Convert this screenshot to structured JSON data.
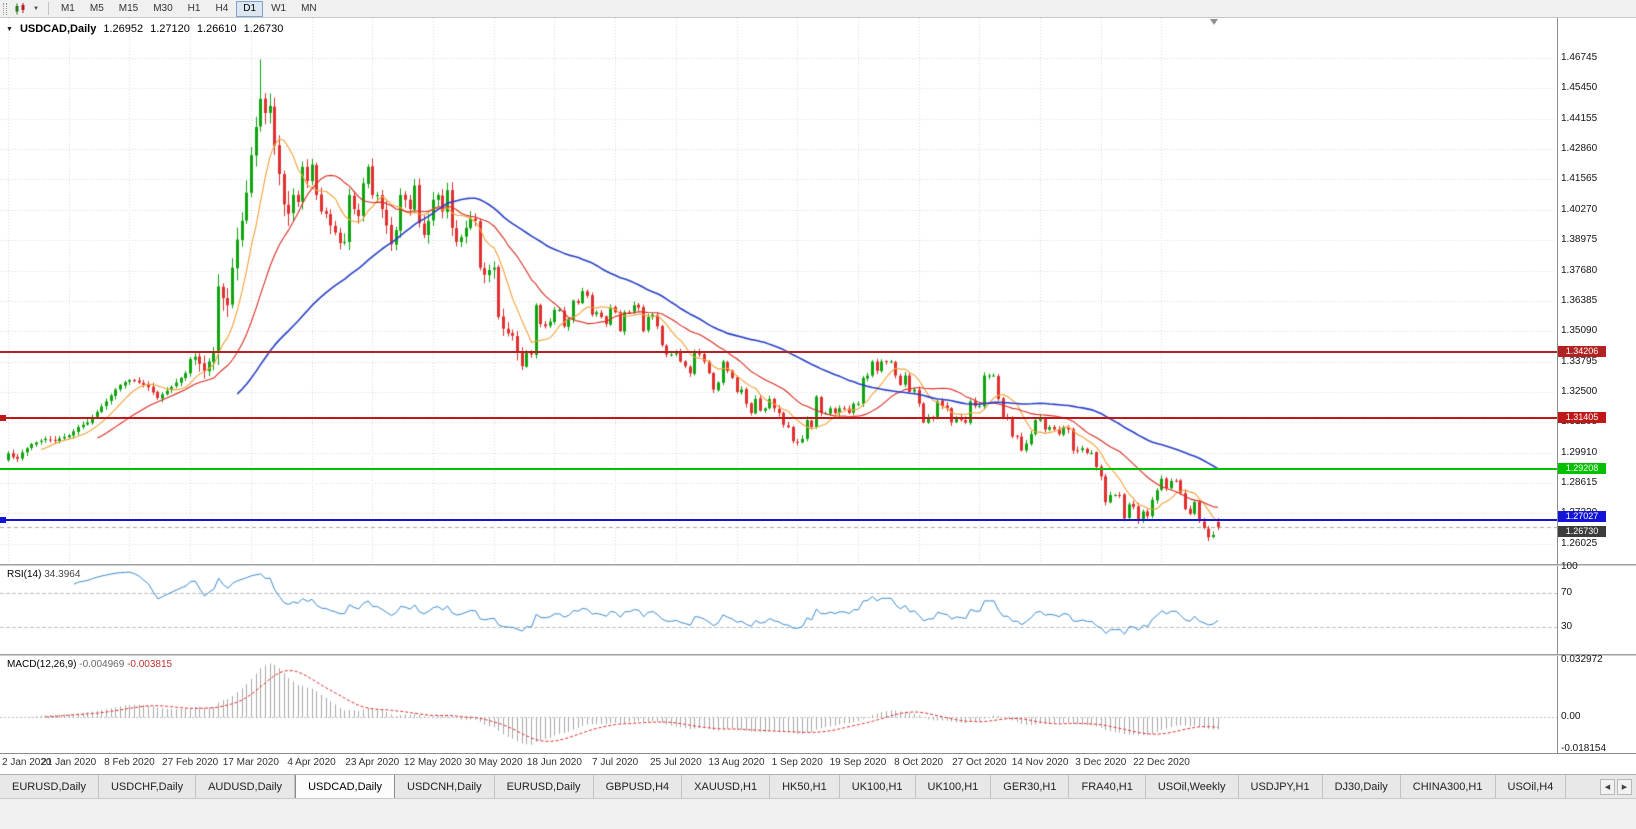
{
  "toolbar": {
    "timeframes": [
      "M1",
      "M5",
      "M15",
      "M30",
      "H1",
      "H4",
      "D1",
      "W1",
      "MN"
    ],
    "active": "D1"
  },
  "chart": {
    "symbol": "USDCAD,Daily",
    "open": "1.26952",
    "high": "1.27120",
    "low": "1.26610",
    "close": "1.26730",
    "collapse_icon": "▼"
  },
  "chart_data": {
    "type": "candlestick",
    "symbol": "USDCAD",
    "timeframe": "Daily",
    "x_labels": [
      "2 Jan 2020",
      "21 Jan 2020",
      "8 Feb 2020",
      "27 Feb 2020",
      "17 Mar 2020",
      "4 Apr 2020",
      "23 Apr 2020",
      "12 May 2020",
      "30 May 2020",
      "18 Jun 2020",
      "7 Jul 2020",
      "25 Jul 2020",
      "13 Aug 2020",
      "1 Sep 2020",
      "19 Sep 2020",
      "8 Oct 2020",
      "27 Oct 2020",
      "14 Nov 2020",
      "3 Dec 2020",
      "22 Dec 2020"
    ],
    "bars_per_label": 13,
    "y_axis": {
      "top": 1.46745,
      "step": 0.01295,
      "ticks": 17
    },
    "y_tick_labels": [
      "1.46745",
      "1.45450",
      "1.44155",
      "1.42860",
      "1.41565",
      "1.40270",
      "1.38975",
      "1.37680",
      "1.36385",
      "1.35090",
      "1.33795",
      "1.32500",
      "1.31205",
      "1.29910",
      "1.28615",
      "1.27320",
      "1.26025"
    ],
    "first_open": 1.296,
    "closes": [
      1.2988,
      1.2972,
      1.2965,
      1.2992,
      1.301,
      1.3028,
      1.3035,
      1.3042,
      1.305,
      1.3046,
      1.3042,
      1.3052,
      1.3058,
      1.3065,
      1.3082,
      1.31,
      1.311,
      1.312,
      1.3142,
      1.3165,
      1.3188,
      1.321,
      1.3235,
      1.326,
      1.328,
      1.3292,
      1.33,
      1.3296,
      1.329,
      1.328,
      1.327,
      1.3248,
      1.3225,
      1.324,
      1.3255,
      1.3272,
      1.329,
      1.331,
      1.333,
      1.339,
      1.34,
      1.337,
      1.334,
      1.338,
      1.342,
      1.37,
      1.365,
      1.362,
      1.378,
      1.39,
      1.398,
      1.41,
      1.426,
      1.438,
      1.45,
      1.444,
      1.447,
      1.43,
      1.418,
      1.405,
      1.401,
      1.409,
      1.406,
      1.421,
      1.415,
      1.422,
      1.409,
      1.402,
      1.401,
      1.396,
      1.393,
      1.3885,
      1.389,
      1.409,
      1.403,
      1.4,
      1.414,
      1.421,
      1.409,
      1.409,
      1.403,
      1.396,
      1.388,
      1.394,
      1.409,
      1.407,
      1.403,
      1.413,
      1.397,
      1.392,
      1.398,
      1.407,
      1.409,
      1.402,
      1.411,
      1.395,
      1.389,
      1.391,
      1.395,
      1.399,
      1.398,
      1.378,
      1.375,
      1.377,
      1.378,
      1.357,
      1.352,
      1.35,
      1.349,
      1.342,
      1.336,
      1.342,
      1.341,
      1.362,
      1.354,
      1.353,
      1.355,
      1.36,
      1.36,
      1.353,
      1.356,
      1.364,
      1.363,
      1.368,
      1.366,
      1.358,
      1.359,
      1.357,
      1.354,
      1.361,
      1.359,
      1.351,
      1.359,
      1.359,
      1.362,
      1.361,
      1.351,
      1.357,
      1.358,
      1.353,
      1.345,
      1.341,
      1.341,
      1.342,
      1.338,
      1.336,
      1.333,
      1.342,
      1.341,
      1.338,
      1.333,
      1.326,
      1.329,
      1.338,
      1.334,
      1.331,
      1.325,
      1.326,
      1.32,
      1.316,
      1.322,
      1.317,
      1.318,
      1.322,
      1.318,
      1.316,
      1.311,
      1.31,
      1.304,
      1.3035,
      1.305,
      1.313,
      1.31,
      1.323,
      1.316,
      1.316,
      1.318,
      1.316,
      1.318,
      1.318,
      1.316,
      1.32,
      1.32,
      1.331,
      1.332,
      1.338,
      1.334,
      1.338,
      1.338,
      1.338,
      1.332,
      1.328,
      1.332,
      1.325,
      1.326,
      1.32,
      1.312,
      1.314,
      1.314,
      1.321,
      1.319,
      1.318,
      1.312,
      1.314,
      1.313,
      1.312,
      1.321,
      1.319,
      1.319,
      1.332,
      1.332,
      1.332,
      1.322,
      1.314,
      1.314,
      1.306,
      1.306,
      1.3,
      1.303,
      1.307,
      1.313,
      1.314,
      1.309,
      1.31,
      1.309,
      1.307,
      1.31,
      1.309,
      1.3,
      1.3,
      1.301,
      1.299,
      1.299,
      1.293,
      1.289,
      1.278,
      1.281,
      1.281,
      1.281,
      1.271,
      1.277,
      1.276,
      1.27,
      1.274,
      1.272,
      1.279,
      1.283,
      1.288,
      1.284,
      1.287,
      1.287,
      1.282,
      1.275,
      1.273,
      1.278,
      1.27,
      1.267,
      1.263,
      1.264,
      1.2673
    ],
    "forced_high": {
      "index": 54,
      "value": 1.4668
    },
    "last_candle": {
      "open": 1.26952,
      "high": 1.2712,
      "low": 1.2661,
      "close": 1.2673
    },
    "moving_averages": [
      {
        "period": 8,
        "color": "#F2A33C"
      },
      {
        "period": 20,
        "color": "#D93025"
      },
      {
        "period": 50,
        "color": "#2840C8"
      }
    ],
    "horizontal_lines": [
      {
        "label": "1.34206",
        "value": 1.34206,
        "color": "#B22222",
        "handles": false
      },
      {
        "label": "1.31405",
        "value": 1.31405,
        "color": "#C01818",
        "handles": true
      },
      {
        "label": "1.29208",
        "value": 1.29208,
        "color": "#00C000",
        "handles": false
      },
      {
        "label": "1.27027",
        "value": 1.27027,
        "color": "#1414D6",
        "handles": true
      }
    ],
    "bid": {
      "label": "1.26730",
      "value": 1.2673,
      "color": "#3C3C3C"
    },
    "candle_colors": {
      "up": "#11A411",
      "down": "#E03030"
    },
    "grid_color": "#DBDBDB",
    "indicators": {
      "rsi": {
        "name": "RSI(14)",
        "value": "34.3964",
        "period": 14,
        "levels": [
          "100",
          "70",
          "30"
        ],
        "level_values": [
          100,
          70,
          30
        ],
        "color": "#3C8CD0"
      },
      "macd": {
        "name": "MACD(12,26,9)",
        "value_main": "-0.004969",
        "value_signal": "-0.003815",
        "fast": 12,
        "slow": 26,
        "signal": 9,
        "axis_labels": [
          "0.032972",
          "0.00",
          "-0.018154"
        ],
        "axis_values": [
          0.032972,
          0,
          -0.018154
        ],
        "hist_color": "#A9A9A9",
        "signal_color": "#E03030"
      }
    }
  },
  "tabs": {
    "items": [
      "EURUSD,Daily",
      "USDCHF,Daily",
      "AUDUSD,Daily",
      "USDCAD,Daily",
      "USDCNH,Daily",
      "EURUSD,Daily",
      "GBPUSD,H4",
      "XAUUSD,H1",
      "HK50,H1",
      "UK100,H1",
      "UK100,H1",
      "GER30,H1",
      "FRA40,H1",
      "USOil,Weekly",
      "USDJPY,H1",
      "DJ30,Daily",
      "CHINA300,H1",
      "USOil,H4"
    ],
    "active_index": 3,
    "scroll_left_icon": "◀",
    "scroll_right_icon": "▶"
  }
}
